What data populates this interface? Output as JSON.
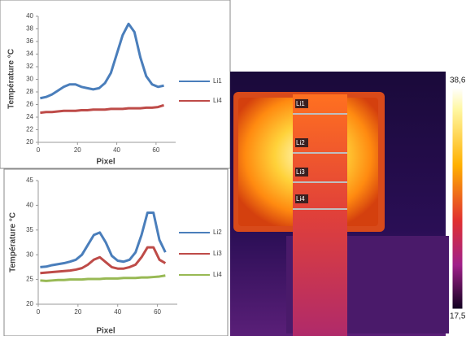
{
  "chart_data": [
    {
      "type": "line",
      "x_label": "Pixel",
      "y_label": "Température °C",
      "x": [
        1,
        4,
        7,
        10,
        13,
        16,
        19,
        22,
        25,
        28,
        31,
        34,
        37,
        40,
        43,
        46,
        49,
        52,
        55,
        58,
        61,
        64
      ],
      "series": [
        {
          "name": "Li1",
          "color": "#4a7ebb",
          "values": [
            27.0,
            27.2,
            27.6,
            28.2,
            28.8,
            29.2,
            29.2,
            28.8,
            28.6,
            28.4,
            28.6,
            29.4,
            31.0,
            34.0,
            37.0,
            38.8,
            37.5,
            33.5,
            30.5,
            29.2,
            28.8,
            29.0
          ]
        },
        {
          "name": "Li4",
          "color": "#be4b48",
          "values": [
            24.7,
            24.8,
            24.8,
            24.9,
            25.0,
            25.0,
            25.0,
            25.1,
            25.1,
            25.2,
            25.2,
            25.2,
            25.3,
            25.3,
            25.3,
            25.4,
            25.4,
            25.4,
            25.5,
            25.5,
            25.6,
            25.9
          ]
        }
      ],
      "xlim": [
        0,
        70
      ],
      "xticks": [
        0,
        20,
        40,
        60
      ],
      "ylim": [
        20,
        40
      ],
      "yticks": [
        20,
        22,
        24,
        26,
        28,
        30,
        32,
        34,
        36,
        38,
        40
      ],
      "legend": "right"
    },
    {
      "type": "line",
      "x_label": "Pixel",
      "y_label": "Température °C",
      "x": [
        1,
        4,
        7,
        10,
        13,
        16,
        19,
        22,
        25,
        28,
        31,
        34,
        37,
        40,
        43,
        46,
        49,
        52,
        55,
        58,
        61,
        64
      ],
      "series": [
        {
          "name": "Li2",
          "color": "#4a7ebb",
          "values": [
            27.5,
            27.6,
            27.9,
            28.1,
            28.3,
            28.6,
            29.0,
            30.0,
            32.0,
            34.0,
            34.5,
            32.5,
            29.8,
            28.8,
            28.6,
            29.0,
            30.5,
            34.0,
            38.5,
            38.5,
            33.0,
            30.5
          ]
        },
        {
          "name": "Li3",
          "color": "#be4b48",
          "values": [
            26.3,
            26.4,
            26.5,
            26.6,
            26.7,
            26.8,
            27.0,
            27.3,
            28.0,
            29.0,
            29.5,
            28.5,
            27.5,
            27.2,
            27.2,
            27.5,
            28.0,
            29.5,
            31.5,
            31.5,
            29.0,
            28.3
          ]
        },
        {
          "name": "Li4",
          "color": "#98b954",
          "values": [
            24.8,
            24.7,
            24.8,
            24.9,
            24.9,
            25.0,
            25.0,
            25.0,
            25.1,
            25.1,
            25.1,
            25.2,
            25.2,
            25.2,
            25.3,
            25.3,
            25.3,
            25.4,
            25.4,
            25.5,
            25.6,
            25.8
          ]
        }
      ],
      "xlim": [
        0,
        70
      ],
      "xticks": [
        0,
        20,
        40,
        60
      ],
      "ylim": [
        20,
        45
      ],
      "yticks": [
        20,
        25,
        30,
        35,
        40,
        45
      ],
      "legend": "right"
    }
  ],
  "image": {
    "line_labels": [
      "Li1",
      "Li2",
      "Li3",
      "Li4"
    ],
    "scale_max": "38,6",
    "scale_min": "17,5"
  }
}
